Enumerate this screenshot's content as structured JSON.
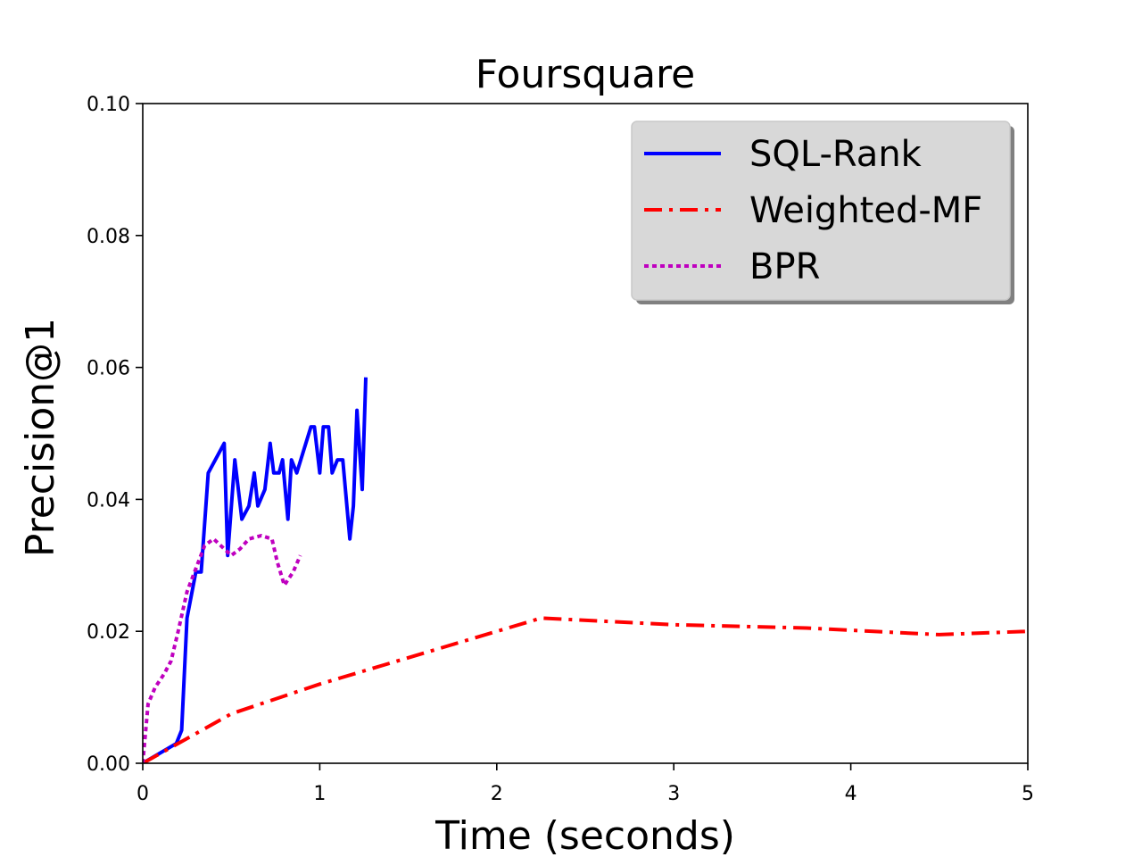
{
  "chart_data": {
    "type": "line",
    "title": "Foursquare",
    "xlabel": "Time (seconds)",
    "ylabel": "Precision@1",
    "xlim": [
      0,
      5
    ],
    "ylim": [
      0,
      0.1
    ],
    "xticks": [
      0,
      1,
      2,
      3,
      4,
      5
    ],
    "xtick_labels": [
      "0",
      "1",
      "2",
      "3",
      "4",
      "5"
    ],
    "yticks": [
      0,
      0.02,
      0.04,
      0.06,
      0.08,
      0.1
    ],
    "ytick_labels": [
      "0.00",
      "0.02",
      "0.04",
      "0.06",
      "0.08",
      "0.10"
    ],
    "grid": false,
    "legend_position": "top-right",
    "series": [
      {
        "name": "SQL-Rank",
        "color": "#0000ff",
        "style": "solid",
        "x": [
          0.0,
          0.19,
          0.22,
          0.25,
          0.3,
          0.33,
          0.37,
          0.46,
          0.48,
          0.52,
          0.56,
          0.6,
          0.63,
          0.65,
          0.69,
          0.72,
          0.74,
          0.77,
          0.79,
          0.82,
          0.84,
          0.87,
          0.95,
          0.97,
          1.0,
          1.02,
          1.05,
          1.07,
          1.1,
          1.13,
          1.17,
          1.19,
          1.21,
          1.24,
          1.26
        ],
        "y": [
          0.0,
          0.003,
          0.005,
          0.022,
          0.029,
          0.029,
          0.044,
          0.0485,
          0.0315,
          0.046,
          0.037,
          0.039,
          0.044,
          0.039,
          0.0415,
          0.0485,
          0.044,
          0.044,
          0.046,
          0.037,
          0.046,
          0.044,
          0.051,
          0.051,
          0.044,
          0.051,
          0.051,
          0.044,
          0.046,
          0.046,
          0.034,
          0.039,
          0.0535,
          0.0415,
          0.0585
        ]
      },
      {
        "name": "Weighted-MF",
        "color": "#ff0000",
        "style": "dashdot",
        "x": [
          0.0,
          0.5,
          1.0,
          1.5,
          2.25,
          3.0,
          3.75,
          4.5,
          5.0
        ],
        "y": [
          0.0,
          0.0075,
          0.012,
          0.016,
          0.022,
          0.021,
          0.0205,
          0.0195,
          0.02
        ]
      },
      {
        "name": "BPR",
        "color": "#bf00bf",
        "style": "dotted",
        "x": [
          0.0,
          0.03,
          0.07,
          0.12,
          0.16,
          0.2,
          0.25,
          0.3,
          0.35,
          0.4,
          0.46,
          0.5,
          0.55,
          0.6,
          0.67,
          0.73,
          0.76,
          0.8,
          0.85,
          0.89
        ],
        "y": [
          0.0,
          0.009,
          0.0115,
          0.0135,
          0.0155,
          0.02,
          0.026,
          0.0295,
          0.033,
          0.034,
          0.0325,
          0.0315,
          0.0325,
          0.034,
          0.0345,
          0.034,
          0.0305,
          0.027,
          0.029,
          0.0315
        ]
      }
    ]
  }
}
